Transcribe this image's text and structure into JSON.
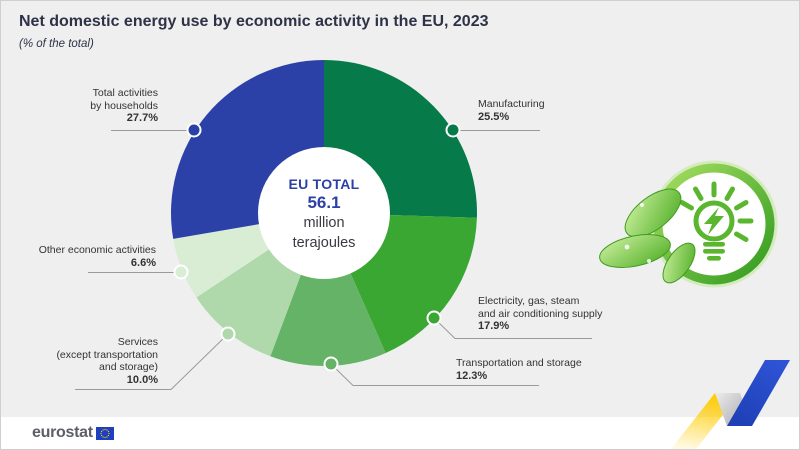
{
  "header": {
    "title": "Net domestic energy use by economic activity in the EU, 2023",
    "subtitle": "(% of the total)"
  },
  "chart_data": {
    "type": "pie",
    "variant": "donut",
    "title": "Net domestic energy use by economic activity in the EU, 2023",
    "subtitle": "(% of the total)",
    "unit": "% of the total",
    "center": {
      "title": "EU TOTAL",
      "value": "56.1",
      "unit_line1": "million",
      "unit_line2": "terajoules"
    },
    "slices": [
      {
        "label": "Manufacturing",
        "value": 25.5,
        "pct_label": "25.5%",
        "color": "#067a49"
      },
      {
        "label": "Electricity, gas, steam\nand air conditioning supply",
        "value": 17.9,
        "pct_label": "17.9%",
        "color": "#3aa733"
      },
      {
        "label": "Transportation and storage",
        "value": 12.3,
        "pct_label": "12.3%",
        "color": "#64b366"
      },
      {
        "label": "Services\n(except transportation\nand storage)",
        "value": 10.0,
        "pct_label": "10.0%",
        "color": "#afd8ab"
      },
      {
        "label": "Other economic activities",
        "value": 6.6,
        "pct_label": "6.6%",
        "color": "#d9edd5"
      },
      {
        "label": "Total activities\nby households",
        "value": 27.7,
        "pct_label": "27.7%",
        "color": "#2c41a7"
      }
    ],
    "legend_position": "callout-labels",
    "grid": false
  },
  "footer": {
    "brand": "eurostat"
  },
  "colors": {
    "background": "#efeff0",
    "accent_blue": "#2c41a7",
    "leader_line": "#9a9a9a",
    "eco_green": "#5ab62e",
    "ribbon_yellow": "#ffcc00",
    "ribbon_blue": "#2246c5"
  }
}
